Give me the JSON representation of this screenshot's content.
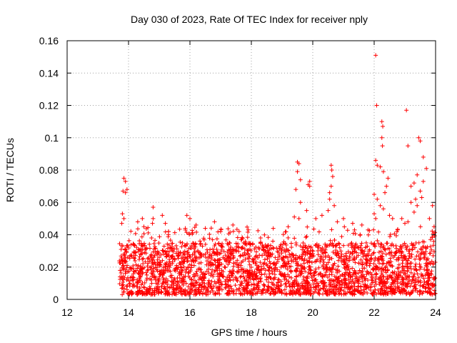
{
  "chart_data": {
    "type": "scatter",
    "title": "Day 030 of 2023, Rate Of TEC Index for receiver nply",
    "xlabel": "GPS time / hours",
    "ylabel": "ROTI / TECUs",
    "xlim": [
      12,
      24
    ],
    "ylim": [
      0,
      0.16
    ],
    "x_ticks": [
      "12",
      "14",
      "16",
      "18",
      "20",
      "22",
      "24"
    ],
    "y_ticks": [
      "0",
      "0.02",
      "0.04",
      "0.06",
      "0.08",
      "0.1",
      "0.12",
      "0.14",
      "0.16"
    ],
    "grid": true,
    "marker": "plus",
    "color": "#ff0000",
    "bulk_band": {
      "x_range": [
        13.7,
        24.0
      ],
      "y_range": [
        0.003,
        0.035
      ],
      "typical_max": 0.045
    },
    "points": [
      [
        13.85,
        0.075
      ],
      [
        13.9,
        0.073
      ],
      [
        13.82,
        0.067
      ],
      [
        13.9,
        0.066
      ],
      [
        13.95,
        0.068
      ],
      [
        13.8,
        0.053
      ],
      [
        13.85,
        0.05
      ],
      [
        13.78,
        0.047
      ],
      [
        14.3,
        0.048
      ],
      [
        14.45,
        0.05
      ],
      [
        14.5,
        0.045
      ],
      [
        14.8,
        0.057
      ],
      [
        14.8,
        0.05
      ],
      [
        14.78,
        0.047
      ],
      [
        15.1,
        0.052
      ],
      [
        15.2,
        0.047
      ],
      [
        15.3,
        0.042
      ],
      [
        15.9,
        0.052
      ],
      [
        16.0,
        0.05
      ],
      [
        15.85,
        0.043
      ],
      [
        16.2,
        0.046
      ],
      [
        16.5,
        0.044
      ],
      [
        16.8,
        0.048
      ],
      [
        17.0,
        0.042
      ],
      [
        17.4,
        0.046
      ],
      [
        17.6,
        0.042
      ],
      [
        17.9,
        0.043
      ],
      [
        18.3,
        0.038
      ],
      [
        18.7,
        0.036
      ],
      [
        19.2,
        0.045
      ],
      [
        19.5,
        0.085
      ],
      [
        19.55,
        0.084
      ],
      [
        19.5,
        0.079
      ],
      [
        19.6,
        0.074
      ],
      [
        19.45,
        0.068
      ],
      [
        19.6,
        0.06
      ],
      [
        19.4,
        0.051
      ],
      [
        19.55,
        0.05
      ],
      [
        19.9,
        0.073
      ],
      [
        19.9,
        0.07
      ],
      [
        19.85,
        0.071
      ],
      [
        19.8,
        0.055
      ],
      [
        20.1,
        0.05
      ],
      [
        20.3,
        0.052
      ],
      [
        20.55,
        0.066
      ],
      [
        20.6,
        0.083
      ],
      [
        20.62,
        0.08
      ],
      [
        20.65,
        0.076
      ],
      [
        20.6,
        0.07
      ],
      [
        20.55,
        0.062
      ],
      [
        20.7,
        0.058
      ],
      [
        20.5,
        0.055
      ],
      [
        20.8,
        0.048
      ],
      [
        21.0,
        0.05
      ],
      [
        21.3,
        0.047
      ],
      [
        21.6,
        0.046
      ],
      [
        21.8,
        0.043
      ],
      [
        22.05,
        0.151
      ],
      [
        22.08,
        0.12
      ],
      [
        22.25,
        0.11
      ],
      [
        22.28,
        0.107
      ],
      [
        22.25,
        0.1
      ],
      [
        22.27,
        0.095
      ],
      [
        22.2,
        0.082
      ],
      [
        22.05,
        0.086
      ],
      [
        22.1,
        0.083
      ],
      [
        22.3,
        0.079
      ],
      [
        22.45,
        0.075
      ],
      [
        22.4,
        0.07
      ],
      [
        22.35,
        0.066
      ],
      [
        22.0,
        0.065
      ],
      [
        22.1,
        0.062
      ],
      [
        22.2,
        0.058
      ],
      [
        22.3,
        0.056
      ],
      [
        22.0,
        0.053
      ],
      [
        22.05,
        0.05
      ],
      [
        22.5,
        0.052
      ],
      [
        22.6,
        0.05
      ],
      [
        22.9,
        0.05
      ],
      [
        23.05,
        0.117
      ],
      [
        23.1,
        0.095
      ],
      [
        23.45,
        0.1
      ],
      [
        23.5,
        0.098
      ],
      [
        23.6,
        0.088
      ],
      [
        23.7,
        0.081
      ],
      [
        23.4,
        0.077
      ],
      [
        23.6,
        0.073
      ],
      [
        23.3,
        0.072
      ],
      [
        23.2,
        0.07
      ],
      [
        23.5,
        0.067
      ],
      [
        23.35,
        0.062
      ],
      [
        23.4,
        0.058
      ],
      [
        23.3,
        0.054
      ],
      [
        23.2,
        0.06
      ],
      [
        23.55,
        0.063
      ],
      [
        23.9,
        0.058
      ],
      [
        23.8,
        0.05
      ],
      [
        23.95,
        0.045
      ],
      [
        23.1,
        0.048
      ],
      [
        23.0,
        0.047
      ]
    ]
  }
}
